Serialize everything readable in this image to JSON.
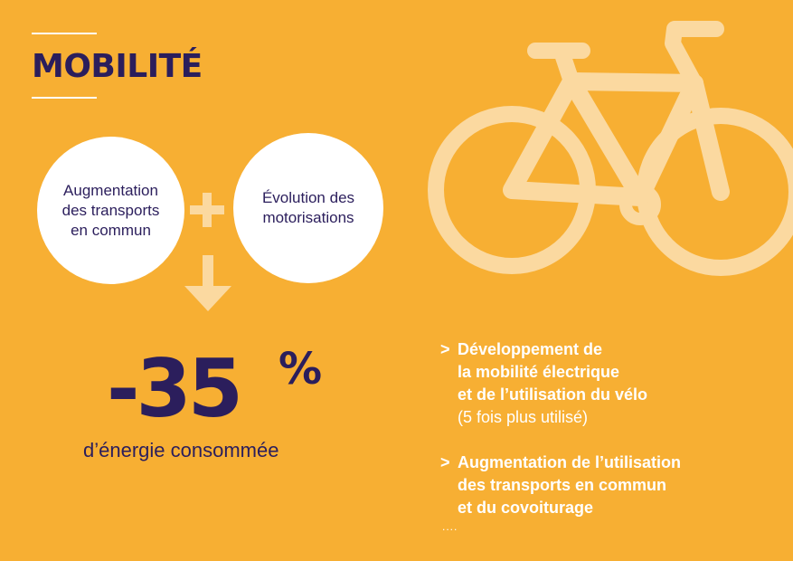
{
  "title": "MOBILITÉ",
  "circle_left": {
    "line1": "Augmentation",
    "line2": "des transports",
    "line3": "en commun"
  },
  "circle_right": {
    "line1": "Évolution des",
    "line2": "motorisations"
  },
  "result": {
    "value": "-35",
    "unit": "%",
    "caption": "d’énergie consommée"
  },
  "bullets": [
    {
      "marker": ">",
      "lines": [
        "Développement de",
        "la mobilité électrique",
        "et de l’utilisation du vélo"
      ],
      "note": "(5 fois plus utilisé)"
    },
    {
      "marker": ">",
      "lines": [
        "Augmentation de l’utilisation",
        "des transports en commun",
        "et du covoiturage"
      ],
      "note": ""
    }
  ],
  "ellipsis": "....",
  "icons": [
    "plus-icon",
    "arrow-down-icon",
    "bicycle-icon"
  ],
  "colors": {
    "background": "#F7AF33",
    "navy": "#2B1E5C",
    "light": "#FBD9A0",
    "white": "#FFFFFF"
  }
}
